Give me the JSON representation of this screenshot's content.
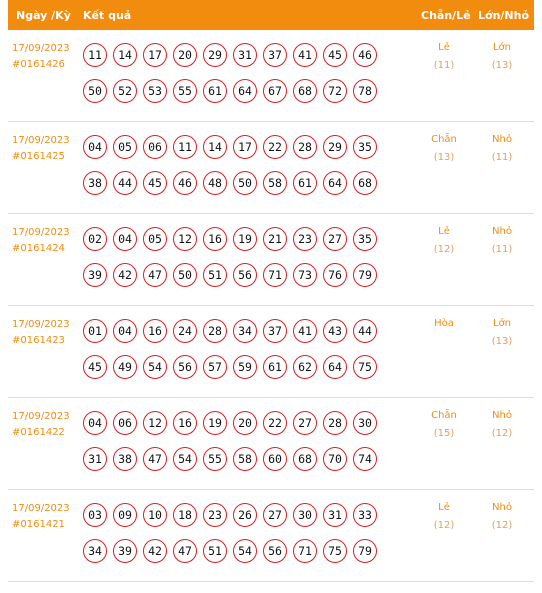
{
  "header": {
    "date_label": "Ngày /Kỳ",
    "result_label": "Kết quả",
    "parity_label": "Chẵn/Lẻ",
    "size_label": "Lớn/Nhỏ"
  },
  "rows": [
    {
      "date": "17/09/2023",
      "period": "#0161426",
      "line1": [
        "11",
        "14",
        "17",
        "20",
        "29",
        "31",
        "37",
        "41",
        "45",
        "46"
      ],
      "line2": [
        "50",
        "52",
        "53",
        "55",
        "61",
        "64",
        "67",
        "68",
        "72",
        "78"
      ],
      "parity": "Lẻ",
      "parity_count": "(11)",
      "size": "Lớn",
      "size_count": "(13)"
    },
    {
      "date": "17/09/2023",
      "period": "#0161425",
      "line1": [
        "04",
        "05",
        "06",
        "11",
        "14",
        "17",
        "22",
        "28",
        "29",
        "35"
      ],
      "line2": [
        "38",
        "44",
        "45",
        "46",
        "48",
        "50",
        "58",
        "61",
        "64",
        "68"
      ],
      "parity": "Chẵn",
      "parity_count": "(13)",
      "size": "Nhỏ",
      "size_count": "(11)"
    },
    {
      "date": "17/09/2023",
      "period": "#0161424",
      "line1": [
        "02",
        "04",
        "05",
        "12",
        "16",
        "19",
        "21",
        "23",
        "27",
        "35"
      ],
      "line2": [
        "39",
        "42",
        "47",
        "50",
        "51",
        "56",
        "71",
        "73",
        "76",
        "79"
      ],
      "parity": "Lẻ",
      "parity_count": "(12)",
      "size": "Nhỏ",
      "size_count": "(11)"
    },
    {
      "date": "17/09/2023",
      "period": "#0161423",
      "line1": [
        "01",
        "04",
        "16",
        "24",
        "28",
        "34",
        "37",
        "41",
        "43",
        "44"
      ],
      "line2": [
        "45",
        "49",
        "54",
        "56",
        "57",
        "59",
        "61",
        "62",
        "64",
        "75"
      ],
      "parity": "Hòa",
      "parity_count": "",
      "size": "Lớn",
      "size_count": "(13)"
    },
    {
      "date": "17/09/2023",
      "period": "#0161422",
      "line1": [
        "04",
        "06",
        "12",
        "16",
        "19",
        "20",
        "22",
        "27",
        "28",
        "30"
      ],
      "line2": [
        "31",
        "38",
        "47",
        "54",
        "55",
        "58",
        "60",
        "68",
        "70",
        "74"
      ],
      "parity": "Chẵn",
      "parity_count": "(15)",
      "size": "Nhỏ",
      "size_count": "(12)"
    },
    {
      "date": "17/09/2023",
      "period": "#0161421",
      "line1": [
        "03",
        "09",
        "10",
        "18",
        "23",
        "26",
        "27",
        "30",
        "31",
        "33"
      ],
      "line2": [
        "34",
        "39",
        "42",
        "47",
        "51",
        "54",
        "56",
        "71",
        "75",
        "79"
      ],
      "parity": "Lẻ",
      "parity_count": "(12)",
      "size": "Nhỏ",
      "size_count": "(12)"
    }
  ],
  "colors": {
    "accent": "#f28c0f",
    "ball_border": "#d62020"
  }
}
